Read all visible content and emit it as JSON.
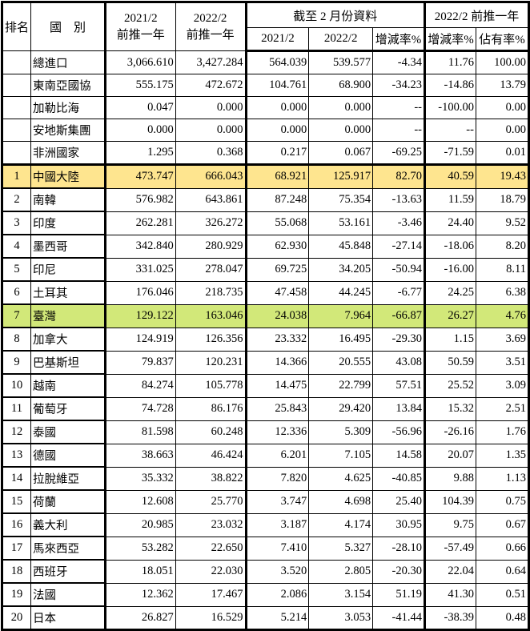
{
  "header": {
    "rank": "排名",
    "country": "國　別",
    "col_2021_prev": [
      "2021/2",
      "前推一年"
    ],
    "col_2022_prev": [
      "2022/2",
      "前推一年"
    ],
    "group_ytd": "截至 2 月份資料",
    "ytd_2021": "2021/2",
    "ytd_2022": "2022/2",
    "ytd_change": "增減率%",
    "group_prev": "2022/2 前推一年",
    "prev_change": "增減率%",
    "prev_share": "佔有率%"
  },
  "highlight_colors": {
    "china": "#fee58f",
    "taiwan": "#d2e879"
  },
  "summary_rows": [
    {
      "rank": "",
      "name": "總進口",
      "v": [
        "3,066.610",
        "3,427.284",
        "564.039",
        "539.577",
        "-4.34",
        "11.76",
        "100.00"
      ]
    },
    {
      "rank": "",
      "name": "東南亞國協",
      "v": [
        "555.175",
        "472.672",
        "104.761",
        "68.900",
        "-34.23",
        "-14.86",
        "13.79"
      ]
    },
    {
      "rank": "",
      "name": "加勒比海",
      "v": [
        "0.047",
        "0.000",
        "0.000",
        "0.000",
        "--",
        "-100.00",
        "0.00"
      ]
    },
    {
      "rank": "",
      "name": "安地斯集團",
      "v": [
        "0.000",
        "0.000",
        "0.000",
        "0.000",
        "--",
        "--",
        "0.00"
      ]
    },
    {
      "rank": "",
      "name": "非洲國家",
      "v": [
        "1.295",
        "0.368",
        "0.217",
        "0.067",
        "-69.25",
        "-71.59",
        "0.01"
      ]
    }
  ],
  "ranked_rows": [
    {
      "rank": "1",
      "name": "中國大陸",
      "highlight": "yellow",
      "v": [
        "473.747",
        "666.043",
        "68.921",
        "125.917",
        "82.70",
        "40.59",
        "19.43"
      ]
    },
    {
      "rank": "2",
      "name": "南韓",
      "v": [
        "576.982",
        "643.861",
        "87.248",
        "75.354",
        "-13.63",
        "11.59",
        "18.79"
      ]
    },
    {
      "rank": "3",
      "name": "印度",
      "v": [
        "262.281",
        "326.272",
        "55.068",
        "53.161",
        "-3.46",
        "24.40",
        "9.52"
      ]
    },
    {
      "rank": "4",
      "name": "墨西哥",
      "v": [
        "342.840",
        "280.929",
        "62.930",
        "45.848",
        "-27.14",
        "-18.06",
        "8.20"
      ]
    },
    {
      "rank": "5",
      "name": "印尼",
      "v": [
        "331.025",
        "278.047",
        "69.725",
        "34.205",
        "-50.94",
        "-16.00",
        "8.11"
      ]
    },
    {
      "rank": "6",
      "name": "土耳其",
      "v": [
        "176.046",
        "218.735",
        "47.458",
        "44.245",
        "-6.77",
        "24.25",
        "6.38"
      ]
    },
    {
      "rank": "7",
      "name": "臺灣",
      "highlight": "green",
      "v": [
        "129.122",
        "163.046",
        "24.038",
        "7.964",
        "-66.87",
        "26.27",
        "4.76"
      ]
    },
    {
      "rank": "8",
      "name": "加拿大",
      "v": [
        "124.919",
        "126.356",
        "23.332",
        "16.495",
        "-29.30",
        "1.15",
        "3.69"
      ]
    },
    {
      "rank": "9",
      "name": "巴基斯坦",
      "v": [
        "79.837",
        "120.231",
        "14.366",
        "20.555",
        "43.08",
        "50.59",
        "3.51"
      ]
    },
    {
      "rank": "10",
      "name": "越南",
      "v": [
        "84.274",
        "105.778",
        "14.475",
        "22.799",
        "57.51",
        "25.52",
        "3.09"
      ]
    },
    {
      "rank": "11",
      "name": "葡萄牙",
      "v": [
        "74.728",
        "86.176",
        "25.843",
        "29.420",
        "13.84",
        "15.32",
        "2.51"
      ]
    },
    {
      "rank": "12",
      "name": "泰國",
      "v": [
        "81.598",
        "60.248",
        "12.336",
        "5.309",
        "-56.96",
        "-26.16",
        "1.76"
      ]
    },
    {
      "rank": "13",
      "name": "德國",
      "v": [
        "38.663",
        "46.424",
        "6.201",
        "7.105",
        "14.58",
        "20.07",
        "1.35"
      ]
    },
    {
      "rank": "14",
      "name": "拉脫維亞",
      "v": [
        "35.332",
        "38.822",
        "7.820",
        "4.625",
        "-40.85",
        "9.88",
        "1.13"
      ]
    },
    {
      "rank": "15",
      "name": "荷蘭",
      "v": [
        "12.608",
        "25.770",
        "3.747",
        "4.698",
        "25.40",
        "104.39",
        "0.75"
      ]
    },
    {
      "rank": "16",
      "name": "義大利",
      "v": [
        "20.985",
        "23.032",
        "3.187",
        "4.174",
        "30.95",
        "9.75",
        "0.67"
      ]
    },
    {
      "rank": "17",
      "name": "馬來西亞",
      "v": [
        "53.282",
        "22.650",
        "7.410",
        "5.327",
        "-28.10",
        "-57.49",
        "0.66"
      ]
    },
    {
      "rank": "18",
      "name": "西班牙",
      "v": [
        "18.051",
        "22.030",
        "3.520",
        "2.805",
        "-20.30",
        "22.04",
        "0.64"
      ]
    },
    {
      "rank": "19",
      "name": "法國",
      "v": [
        "12.362",
        "17.467",
        "2.086",
        "3.154",
        "51.19",
        "41.30",
        "0.51"
      ]
    },
    {
      "rank": "20",
      "name": "日本",
      "v": [
        "26.827",
        "16.529",
        "5.214",
        "3.053",
        "-41.44",
        "-38.39",
        "0.48"
      ]
    }
  ]
}
